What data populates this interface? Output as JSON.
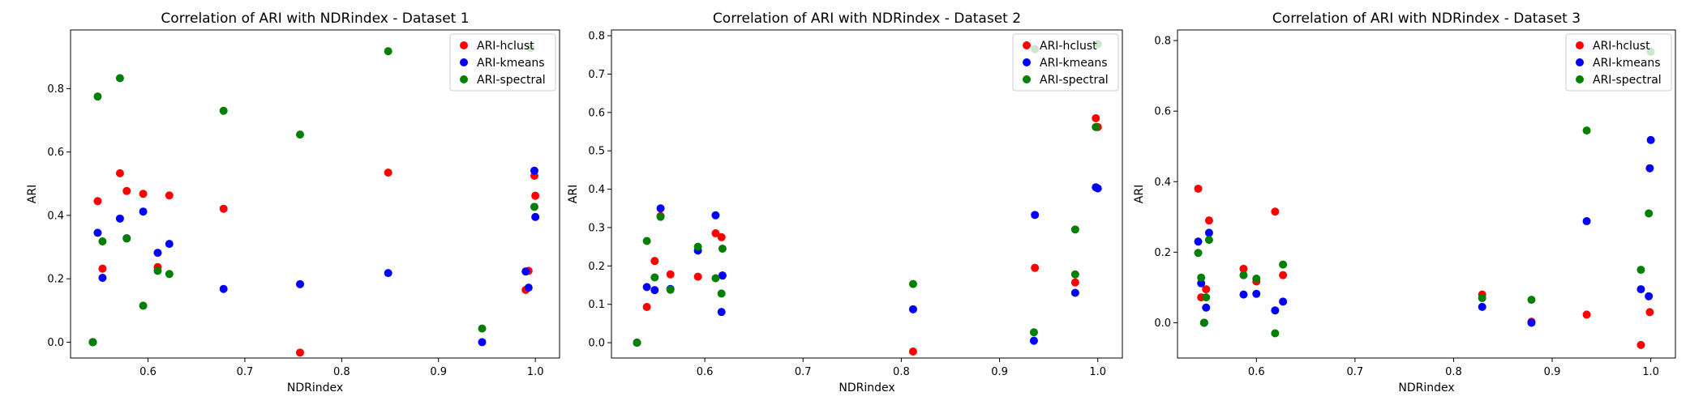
{
  "colors": {
    "ARI-hclust": "#ff0000",
    "ARI-kmeans": "#0000ff",
    "ARI-spectral": "#008000"
  },
  "chart_data": [
    {
      "type": "scatter",
      "title": "Correlation of ARI with NDRindex - Dataset 1",
      "xlabel": "NDRindex",
      "ylabel": "ARI",
      "xlim": [
        0.52,
        1.025
      ],
      "ylim": [
        -0.05,
        0.985
      ],
      "xticks": [
        0.6,
        0.7,
        0.8,
        0.9,
        1.0
      ],
      "xtick_labels": [
        "0.6",
        "0.7",
        "0.8",
        "0.9",
        "1.0"
      ],
      "yticks": [
        0.0,
        0.2,
        0.4,
        0.6,
        0.8
      ],
      "ytick_labels": [
        "0.0",
        "0.2",
        "0.4",
        "0.6",
        "0.8"
      ],
      "legend": "top-right",
      "grid": false,
      "series": [
        {
          "name": "ARI-hclust",
          "color": "#ff0000",
          "points": [
            [
              0.543,
              0.0
            ],
            [
              0.548,
              0.445
            ],
            [
              0.553,
              0.232
            ],
            [
              0.571,
              0.533
            ],
            [
              0.578,
              0.477
            ],
            [
              0.595,
              0.468
            ],
            [
              0.61,
              0.237
            ],
            [
              0.622,
              0.463
            ],
            [
              0.678,
              0.421
            ],
            [
              0.757,
              -0.033
            ],
            [
              0.848,
              0.535
            ],
            [
              0.99,
              0.165
            ],
            [
              0.993,
              0.225
            ],
            [
              0.999,
              0.525
            ],
            [
              1.0,
              0.462
            ]
          ]
        },
        {
          "name": "ARI-kmeans",
          "color": "#0000ff",
          "points": [
            [
              0.543,
              0.0
            ],
            [
              0.548,
              0.345
            ],
            [
              0.553,
              0.203
            ],
            [
              0.571,
              0.39
            ],
            [
              0.578,
              0.328
            ],
            [
              0.595,
              0.412
            ],
            [
              0.61,
              0.282
            ],
            [
              0.622,
              0.31
            ],
            [
              0.678,
              0.168
            ],
            [
              0.757,
              0.183
            ],
            [
              0.848,
              0.218
            ],
            [
              0.945,
              0.0
            ],
            [
              0.99,
              0.223
            ],
            [
              0.993,
              0.172
            ],
            [
              0.999,
              0.541
            ],
            [
              1.0,
              0.395
            ]
          ]
        },
        {
          "name": "ARI-spectral",
          "color": "#008000",
          "points": [
            [
              0.543,
              0.0
            ],
            [
              0.548,
              0.775
            ],
            [
              0.553,
              0.318
            ],
            [
              0.571,
              0.833
            ],
            [
              0.578,
              0.327
            ],
            [
              0.595,
              0.115
            ],
            [
              0.61,
              0.225
            ],
            [
              0.622,
              0.215
            ],
            [
              0.678,
              0.73
            ],
            [
              0.757,
              0.655
            ],
            [
              0.848,
              0.918
            ],
            [
              0.945,
              0.043
            ],
            [
              0.995,
              0.928
            ],
            [
              0.999,
              0.427
            ]
          ]
        }
      ]
    },
    {
      "type": "scatter",
      "title": "Correlation of ARI with NDRindex - Dataset 2",
      "xlabel": "NDRindex",
      "ylabel": "ARI",
      "xlim": [
        0.505,
        1.025
      ],
      "ylim": [
        -0.04,
        0.815
      ],
      "xticks": [
        0.6,
        0.7,
        0.8,
        0.9,
        1.0
      ],
      "xtick_labels": [
        "0.6",
        "0.7",
        "0.8",
        "0.9",
        "1.0"
      ],
      "yticks": [
        0.0,
        0.1,
        0.2,
        0.3,
        0.4,
        0.5,
        0.6,
        0.7,
        0.8
      ],
      "ytick_labels": [
        "0.0",
        "0.1",
        "0.2",
        "0.3",
        "0.4",
        "0.5",
        "0.6",
        "0.7",
        "0.8"
      ],
      "legend": "top-right",
      "grid": false,
      "series": [
        {
          "name": "ARI-hclust",
          "color": "#ff0000",
          "points": [
            [
              0.531,
              0.0
            ],
            [
              0.541,
              0.093
            ],
            [
              0.549,
              0.213
            ],
            [
              0.555,
              0.33
            ],
            [
              0.565,
              0.178
            ],
            [
              0.593,
              0.172
            ],
            [
              0.611,
              0.285
            ],
            [
              0.617,
              0.275
            ],
            [
              0.618,
              0.175
            ],
            [
              0.812,
              -0.023
            ],
            [
              0.936,
              0.195
            ],
            [
              0.977,
              0.157
            ],
            [
              0.998,
              0.585
            ],
            [
              1.0,
              0.562
            ]
          ]
        },
        {
          "name": "ARI-kmeans",
          "color": "#0000ff",
          "points": [
            [
              0.531,
              0.0
            ],
            [
              0.541,
              0.145
            ],
            [
              0.549,
              0.137
            ],
            [
              0.555,
              0.35
            ],
            [
              0.565,
              0.14
            ],
            [
              0.593,
              0.24
            ],
            [
              0.611,
              0.332
            ],
            [
              0.617,
              0.08
            ],
            [
              0.618,
              0.175
            ],
            [
              0.812,
              0.087
            ],
            [
              0.935,
              0.005
            ],
            [
              0.936,
              0.333
            ],
            [
              0.977,
              0.13
            ],
            [
              0.998,
              0.405
            ],
            [
              1.0,
              0.402
            ]
          ]
        },
        {
          "name": "ARI-spectral",
          "color": "#008000",
          "points": [
            [
              0.531,
              0.0
            ],
            [
              0.541,
              0.265
            ],
            [
              0.549,
              0.17
            ],
            [
              0.555,
              0.328
            ],
            [
              0.565,
              0.138
            ],
            [
              0.593,
              0.25
            ],
            [
              0.611,
              0.168
            ],
            [
              0.617,
              0.128
            ],
            [
              0.618,
              0.245
            ],
            [
              0.812,
              0.153
            ],
            [
              0.935,
              0.027
            ],
            [
              0.936,
              0.765
            ],
            [
              0.977,
              0.295
            ],
            [
              0.977,
              0.178
            ],
            [
              0.998,
              0.562
            ],
            [
              1.0,
              0.778
            ]
          ]
        }
      ]
    },
    {
      "type": "scatter",
      "title": "Correlation of ARI with NDRindex - Dataset 3",
      "xlabel": "NDRindex",
      "ylabel": "ARI",
      "xlim": [
        0.52,
        1.025
      ],
      "ylim": [
        -0.1,
        0.83
      ],
      "xticks": [
        0.6,
        0.7,
        0.8,
        0.9,
        1.0
      ],
      "xtick_labels": [
        "0.6",
        "0.7",
        "0.8",
        "0.9",
        "1.0"
      ],
      "yticks": [
        0.0,
        0.2,
        0.4,
        0.6,
        0.8
      ],
      "ytick_labels": [
        "0.0",
        "0.2",
        "0.4",
        "0.6",
        "0.8"
      ],
      "legend": "top-right",
      "grid": false,
      "series": [
        {
          "name": "ARI-hclust",
          "color": "#ff0000",
          "points": [
            [
              0.541,
              0.38
            ],
            [
              0.544,
              0.072
            ],
            [
              0.547,
              0.0
            ],
            [
              0.549,
              0.095
            ],
            [
              0.552,
              0.29
            ],
            [
              0.587,
              0.153
            ],
            [
              0.6,
              0.117
            ],
            [
              0.619,
              0.315
            ],
            [
              0.627,
              0.135
            ],
            [
              0.829,
              0.08
            ],
            [
              0.879,
              0.003
            ],
            [
              0.935,
              0.023
            ],
            [
              0.99,
              -0.063
            ],
            [
              0.999,
              0.03
            ]
          ]
        },
        {
          "name": "ARI-kmeans",
          "color": "#0000ff",
          "points": [
            [
              0.541,
              0.23
            ],
            [
              0.544,
              0.112
            ],
            [
              0.547,
              0.0
            ],
            [
              0.549,
              0.043
            ],
            [
              0.552,
              0.255
            ],
            [
              0.587,
              0.08
            ],
            [
              0.6,
              0.082
            ],
            [
              0.619,
              0.035
            ],
            [
              0.627,
              0.06
            ],
            [
              0.829,
              0.045
            ],
            [
              0.879,
              0.0
            ],
            [
              0.935,
              0.288
            ],
            [
              0.99,
              0.095
            ],
            [
              0.998,
              0.075
            ],
            [
              0.999,
              0.438
            ],
            [
              1.0,
              0.518
            ]
          ]
        },
        {
          "name": "ARI-spectral",
          "color": "#008000",
          "points": [
            [
              0.541,
              0.198
            ],
            [
              0.544,
              0.128
            ],
            [
              0.547,
              0.0
            ],
            [
              0.549,
              0.072
            ],
            [
              0.552,
              0.235
            ],
            [
              0.587,
              0.135
            ],
            [
              0.6,
              0.125
            ],
            [
              0.619,
              -0.03
            ],
            [
              0.627,
              0.165
            ],
            [
              0.829,
              0.07
            ],
            [
              0.879,
              0.065
            ],
            [
              0.935,
              0.545
            ],
            [
              0.99,
              0.15
            ],
            [
              0.998,
              0.31
            ],
            [
              1.0,
              0.768
            ]
          ]
        }
      ]
    }
  ]
}
